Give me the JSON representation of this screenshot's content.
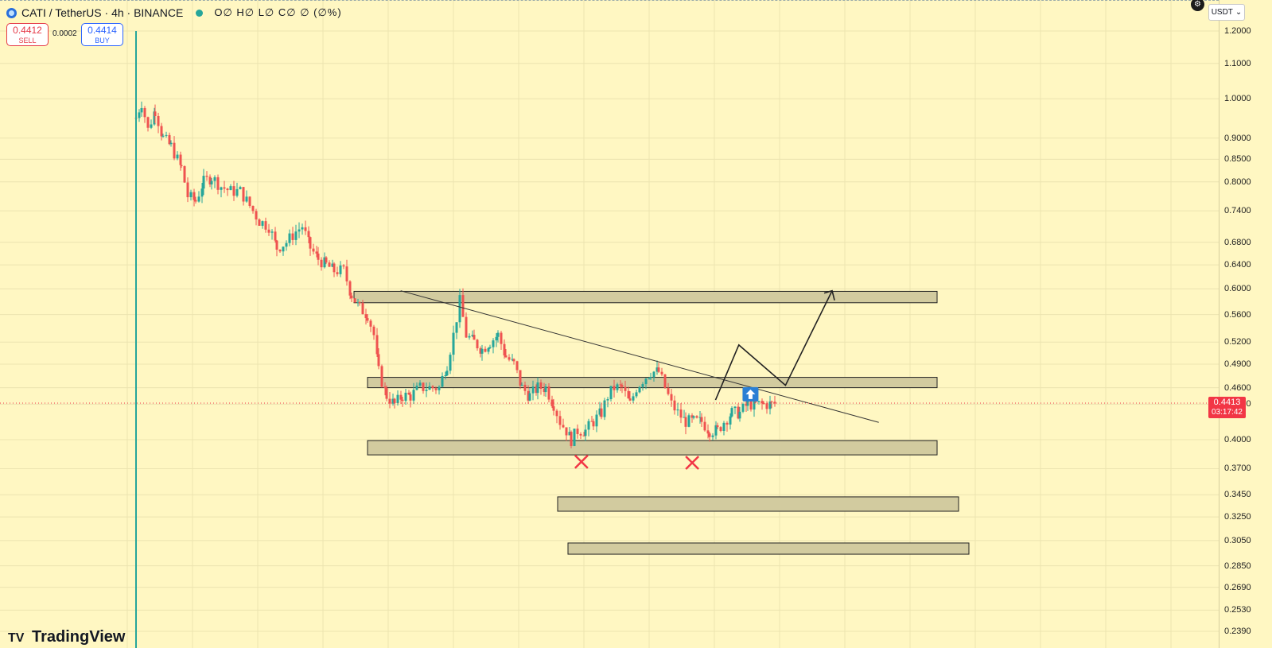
{
  "header": {
    "symbol": "CATI / TetherUS · 4h · BINANCE",
    "ohlc": "O∅ H∅ L∅ C∅ ∅ (∅%)"
  },
  "trade": {
    "sell_price": "0.4412",
    "sell_label": "SELL",
    "spread": "0.0002",
    "buy_price": "0.4414",
    "buy_label": "BUY"
  },
  "currency": {
    "selected": "USDT",
    "chevron": "⌄"
  },
  "price_tag": {
    "price": "0.4413",
    "countdown": "03:17:42"
  },
  "brand": {
    "name": "TradingView",
    "logo": "TV"
  },
  "icons": {
    "gear": "gear-icon",
    "up_arrow": "up-arrow-icon",
    "cross": "x-mark-icon"
  },
  "colors": {
    "background": "#fff7c2",
    "up": "#26a69a",
    "down": "#ef5350",
    "zone_fill": "#d2cb9f",
    "marker_red": "#f23645",
    "arrow_blue": "#2a7fd4"
  },
  "chart_data": {
    "type": "candlestick",
    "scale": "log",
    "y_ticks": [
      "1.2000",
      "1.1000",
      "1.0000",
      "0.9000",
      "0.8500",
      "0.8000",
      "0.7400",
      "0.6800",
      "0.6400",
      "0.6000",
      "0.5600",
      "0.5200",
      "0.4900",
      "0.4600",
      "0.4400",
      "0.4000",
      "0.3700",
      "0.3450",
      "0.3250",
      "0.3050",
      "0.2850",
      "0.2690",
      "0.2530",
      "0.2390"
    ],
    "last_price": 0.4413,
    "zones": [
      {
        "low": 0.578,
        "high": 0.596
      },
      {
        "low": 0.46,
        "high": 0.473
      },
      {
        "low": 0.384,
        "high": 0.399
      },
      {
        "low": 0.33,
        "high": 0.343
      },
      {
        "low": 0.294,
        "high": 0.303
      }
    ],
    "trendline": [
      {
        "x": 0.08,
        "y": 0.597
      },
      {
        "x": 0.9,
        "y": 0.419
      }
    ],
    "projection": [
      {
        "x": 0.62,
        "y": 0.445
      },
      {
        "x": 0.66,
        "y": 0.516
      },
      {
        "x": 0.74,
        "y": 0.463
      },
      {
        "x": 0.82,
        "y": 0.597
      }
    ],
    "markers": [
      {
        "type": "cross",
        "x": 0.39,
        "y": 0.377
      },
      {
        "type": "cross",
        "x": 0.58,
        "y": 0.376
      },
      {
        "type": "arrow-up",
        "x": 0.68,
        "y": 0.452
      }
    ]
  }
}
